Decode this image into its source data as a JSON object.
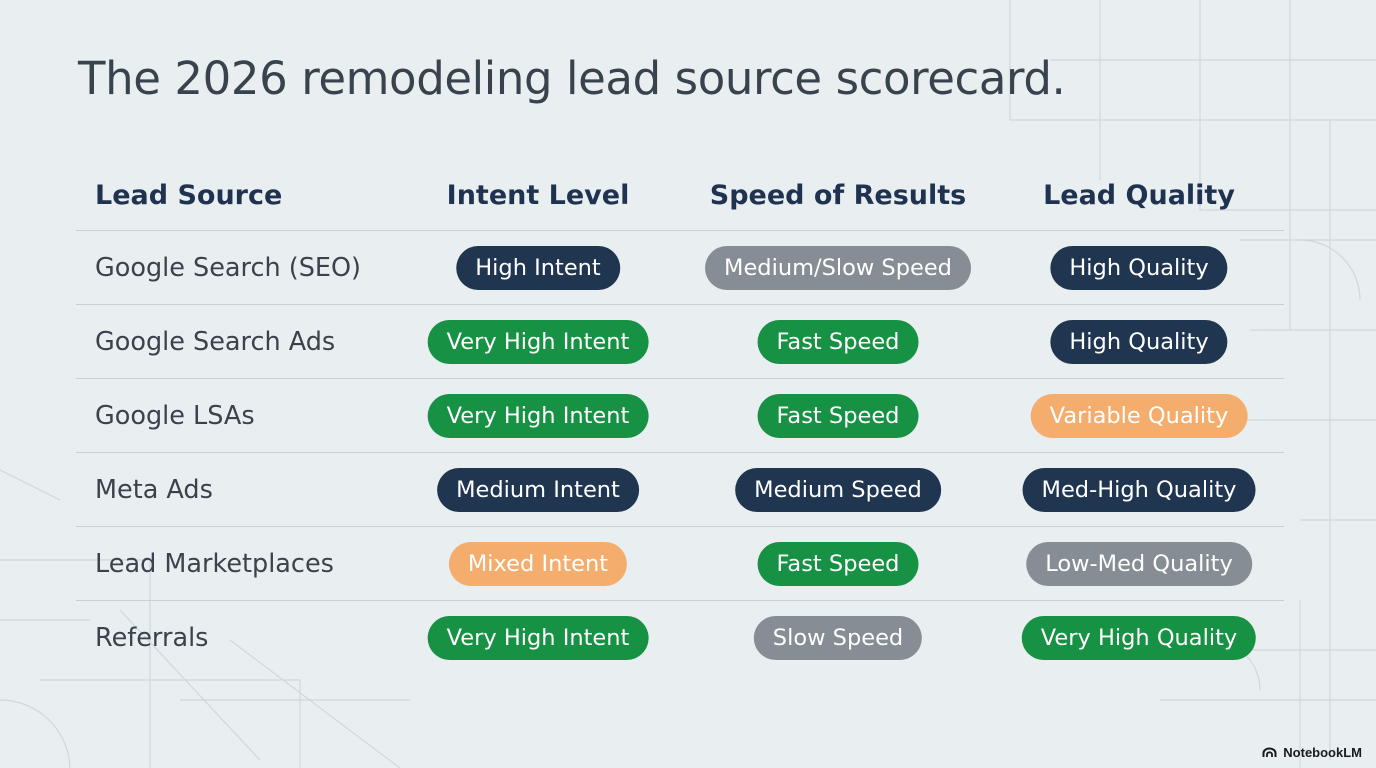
{
  "page": {
    "title": "The 2026 remodeling lead source scorecard."
  },
  "table": {
    "headers": [
      "Lead Source",
      "Intent Level",
      "Speed of Results",
      "Lead Quality"
    ],
    "rows": [
      {
        "source": "Google Search (SEO)",
        "intent": {
          "label": "High Intent",
          "color": "navy"
        },
        "speed": {
          "label": "Medium/Slow Speed",
          "color": "gray"
        },
        "quality": {
          "label": "High Quality",
          "color": "navy"
        }
      },
      {
        "source": "Google Search Ads",
        "intent": {
          "label": "Very High Intent",
          "color": "green"
        },
        "speed": {
          "label": "Fast Speed",
          "color": "green"
        },
        "quality": {
          "label": "High Quality",
          "color": "navy"
        }
      },
      {
        "source": "Google LSAs",
        "intent": {
          "label": "Very High Intent",
          "color": "green"
        },
        "speed": {
          "label": "Fast Speed",
          "color": "green"
        },
        "quality": {
          "label": "Variable Quality",
          "color": "orange"
        }
      },
      {
        "source": "Meta Ads",
        "intent": {
          "label": "Medium Intent",
          "color": "navy"
        },
        "speed": {
          "label": "Medium Speed",
          "color": "navy"
        },
        "quality": {
          "label": "Med-High Quality",
          "color": "navy"
        }
      },
      {
        "source": "Lead Marketplaces",
        "intent": {
          "label": "Mixed Intent",
          "color": "orange"
        },
        "speed": {
          "label": "Fast Speed",
          "color": "green"
        },
        "quality": {
          "label": "Low-Med Quality",
          "color": "gray"
        }
      },
      {
        "source": "Referrals",
        "intent": {
          "label": "Very High Intent",
          "color": "green"
        },
        "speed": {
          "label": "Slow Speed",
          "color": "gray"
        },
        "quality": {
          "label": "Very High Quality",
          "color": "green"
        }
      }
    ]
  },
  "colors": {
    "navy": "#1f3550",
    "green": "#179143",
    "gray": "#868d94",
    "orange": "#f5ad6d"
  },
  "watermark": {
    "label": "NotebookLM",
    "icon": "notebooklm-logo-icon"
  }
}
